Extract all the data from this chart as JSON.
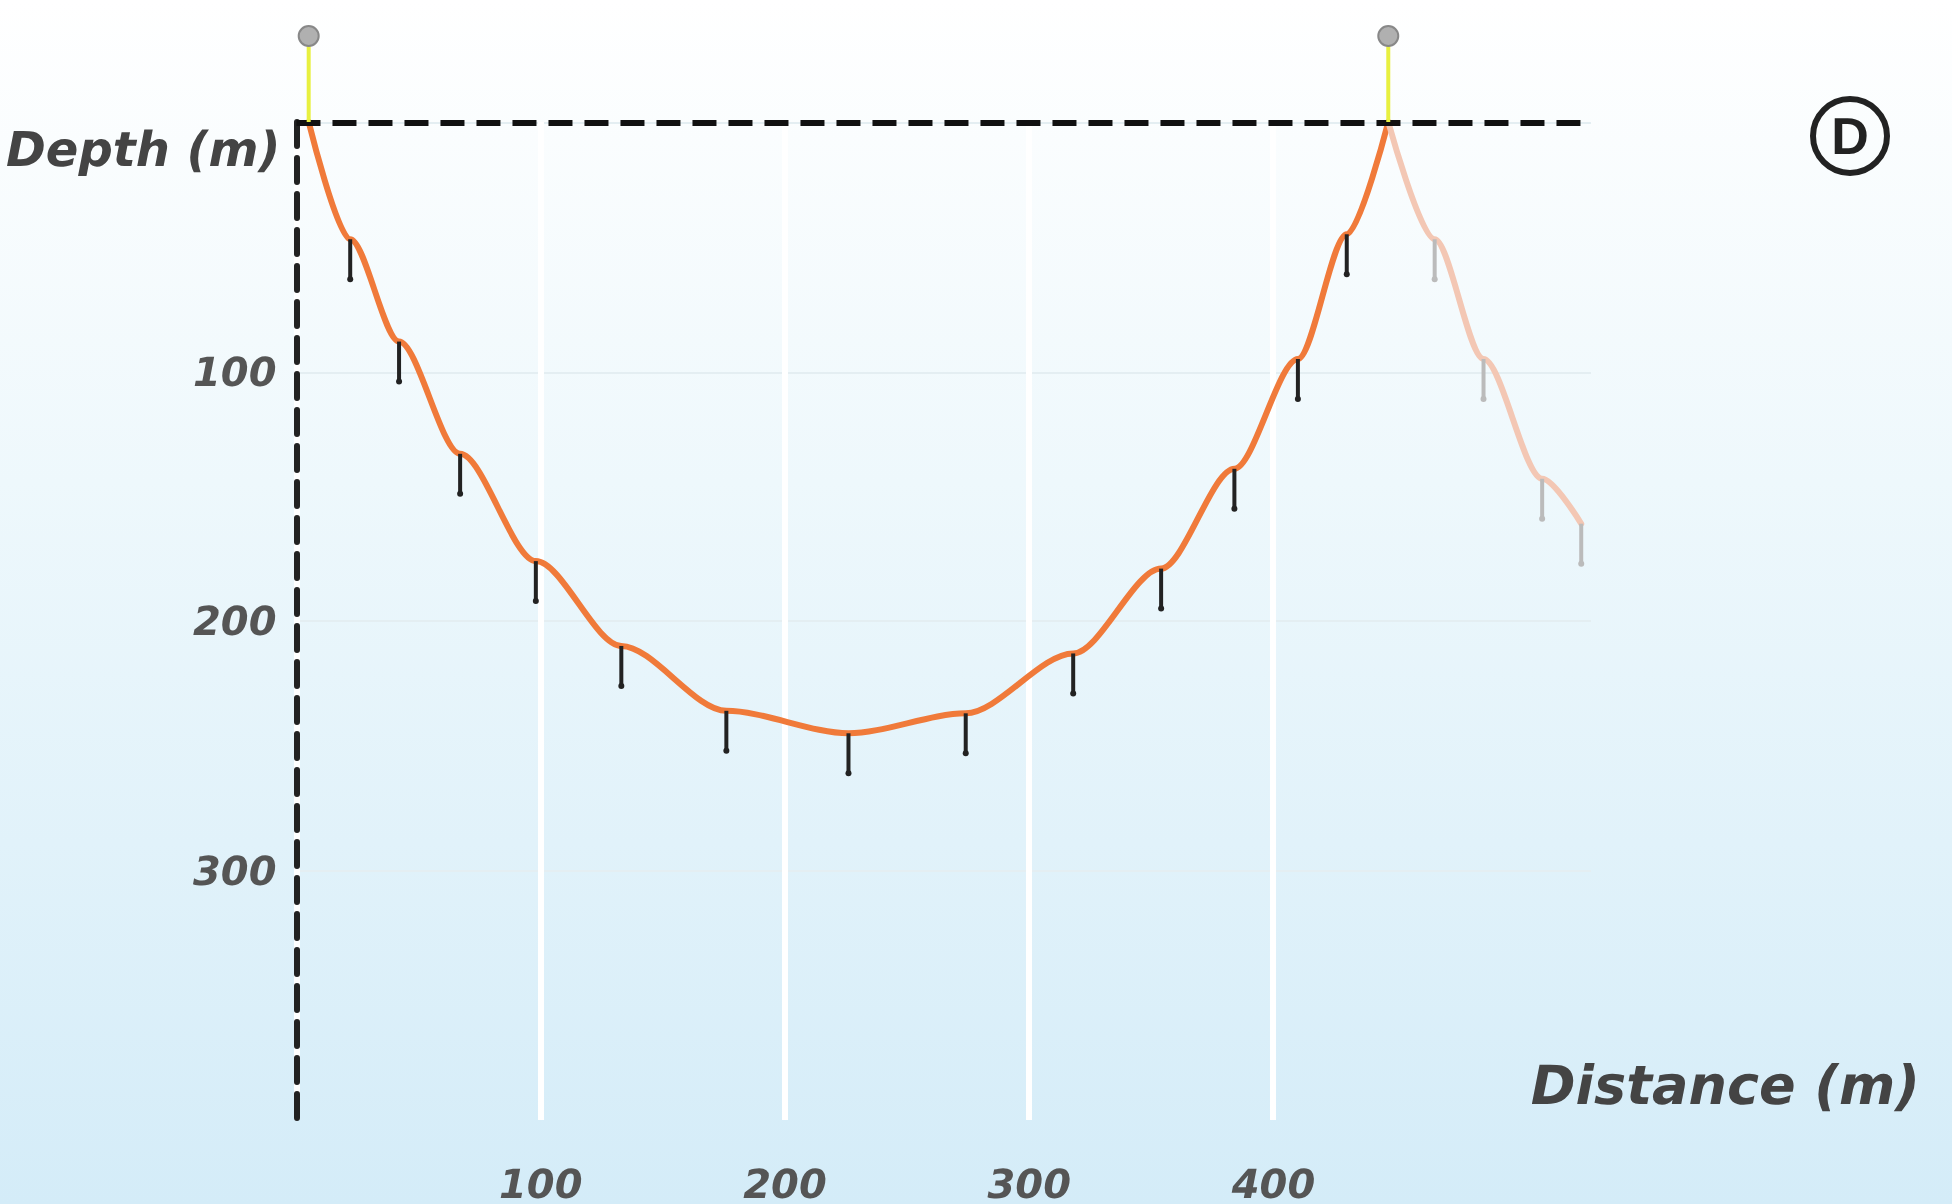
{
  "chart_data": {
    "type": "line",
    "xlabel": "Distance (m)",
    "ylabel": "Depth (m)",
    "annotations": [
      "D"
    ],
    "series": [
      {
        "color": "#f07a3a",
        "x": [
          5,
          22,
          42,
          67,
          98,
          133,
          176,
          226,
          274,
          318,
          354,
          384,
          410,
          430,
          447
        ],
        "values": [
          0,
          47,
          88,
          133,
          176,
          210,
          236,
          245,
          237,
          213,
          179,
          139,
          95,
          45,
          0
        ]
      },
      {
        "color": "#f3c7b4",
        "x": [
          447,
          466,
          486,
          510,
          526
        ],
        "values": [
          0,
          47,
          95,
          143,
          161
        ]
      }
    ],
    "xlim": [
      0,
      530
    ],
    "xticks": [
      {
        "value": 0,
        "label": null
      },
      100,
      200,
      300,
      400
    ],
    "ylim": [
      400,
      0
    ],
    "yticks": [
      {
        "value": 0,
        "label": null
      },
      100,
      200,
      300
    ],
    "ref_lines": [
      {
        "axis": "y",
        "value": 0,
        "color": "#111111",
        "line_style": "dashed"
      }
    ],
    "grid": true,
    "marker": "none",
    "line_style": "solid"
  }
}
